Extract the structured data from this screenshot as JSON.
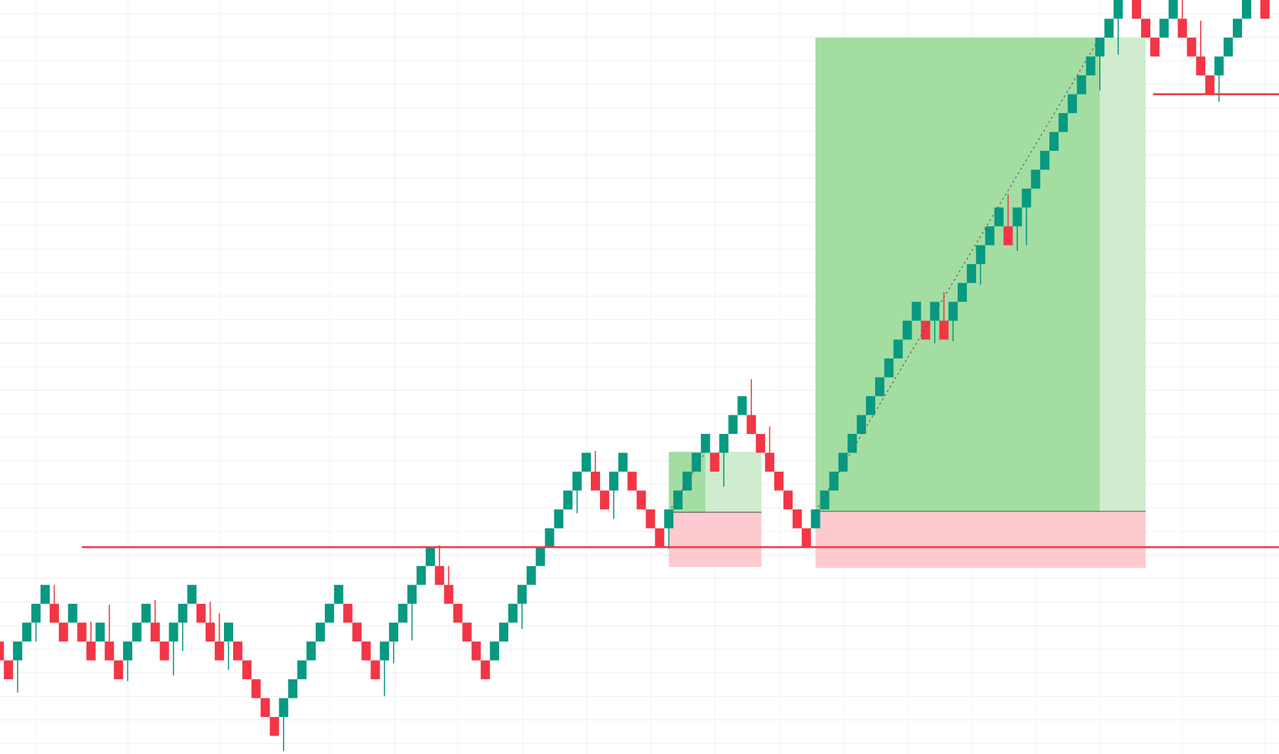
{
  "chart_data": {
    "type": "renko",
    "grid": true,
    "colors": {
      "up": "#089981",
      "down": "#F23645",
      "target_fill": "#A3DDA2",
      "target_fill_light": "#CFECCE",
      "stop_fill": "#FDCBCF",
      "level_line": "#F23645",
      "entry_line": "#5d5d5d",
      "grid": "#f0f0f0"
    },
    "bricks": {
      "bottoms": [
        4,
        3,
        4,
        5,
        6,
        7,
        6,
        5,
        6,
        5,
        4,
        5,
        4,
        3,
        4,
        5,
        6,
        5,
        4,
        5,
        6,
        7,
        6,
        5,
        4,
        5,
        4,
        3,
        2,
        1,
        0,
        1,
        2,
        3,
        4,
        5,
        6,
        7,
        6,
        5,
        4,
        3,
        4,
        5,
        6,
        7,
        8,
        9,
        8,
        7,
        6,
        5,
        4,
        3,
        4,
        5,
        6,
        7,
        8,
        9,
        10,
        11,
        12,
        13,
        14,
        13,
        12,
        13,
        14,
        13,
        12,
        11,
        10,
        11,
        12,
        13,
        14,
        15,
        14,
        15,
        16,
        17,
        16,
        15,
        14,
        13,
        12,
        11,
        10,
        11,
        12,
        13,
        14,
        15,
        16,
        17,
        18,
        19,
        20,
        21,
        22,
        21,
        22,
        21,
        22,
        23,
        24,
        25,
        26,
        27,
        26,
        27,
        28,
        29,
        30,
        31,
        32,
        33,
        34,
        35,
        36,
        37,
        38,
        39,
        38,
        37,
        36,
        37,
        38,
        37,
        36,
        35,
        34,
        35,
        36,
        37,
        38,
        39,
        38
      ],
      "directions": [
        "down",
        "down",
        "up",
        "up",
        "up",
        "up",
        "down",
        "down",
        "up",
        "down",
        "down",
        "up",
        "down",
        "down",
        "up",
        "up",
        "up",
        "down",
        "down",
        "up",
        "up",
        "up",
        "down",
        "down",
        "down",
        "up",
        "down",
        "down",
        "down",
        "down",
        "down",
        "up",
        "up",
        "up",
        "up",
        "up",
        "up",
        "up",
        "down",
        "down",
        "down",
        "down",
        "up",
        "up",
        "up",
        "up",
        "up",
        "up",
        "down",
        "down",
        "down",
        "down",
        "down",
        "down",
        "up",
        "up",
        "up",
        "up",
        "up",
        "up",
        "up",
        "up",
        "up",
        "up",
        "up",
        "down",
        "down",
        "up",
        "up",
        "down",
        "down",
        "down",
        "down",
        "up",
        "up",
        "up",
        "up",
        "up",
        "down",
        "up",
        "up",
        "up",
        "down",
        "down",
        "down",
        "down",
        "down",
        "down",
        "down",
        "up",
        "up",
        "up",
        "up",
        "up",
        "up",
        "up",
        "up",
        "up",
        "up",
        "up",
        "up",
        "down",
        "up",
        "down",
        "up",
        "up",
        "up",
        "up",
        "up",
        "up",
        "down",
        "up",
        "up",
        "up",
        "up",
        "up",
        "up",
        "up",
        "up",
        "up",
        "up",
        "up",
        "up",
        "up",
        "down",
        "down",
        "down",
        "up",
        "up",
        "down",
        "down",
        "down",
        "down",
        "up",
        "up",
        "up",
        "up",
        "up",
        "down"
      ]
    },
    "wicks": [
      {
        "brick": 2,
        "to": 2.3
      },
      {
        "brick": 4,
        "to": 5.0
      },
      {
        "brick": 6,
        "to": 8.0
      },
      {
        "brick": 10,
        "to": 6.05
      },
      {
        "brick": 12,
        "to": 6.95
      },
      {
        "brick": 14,
        "to": 2.9
      },
      {
        "brick": 17,
        "to": 7.2
      },
      {
        "brick": 19,
        "to": 3.2
      },
      {
        "brick": 20,
        "to": 4.5
      },
      {
        "brick": 23,
        "to": 7.1
      },
      {
        "brick": 24,
        "to": 6.5
      },
      {
        "brick": 25,
        "to": 3.5
      },
      {
        "brick": 31,
        "to": -0.8
      },
      {
        "brick": 42,
        "to": 2.1
      },
      {
        "brick": 43,
        "to": 3.85
      },
      {
        "brick": 45,
        "to": 5.05
      },
      {
        "brick": 48,
        "to": 10.1
      },
      {
        "brick": 49,
        "to": 9.0
      },
      {
        "brick": 57,
        "to": 5.67
      },
      {
        "brick": 63,
        "to": 11.8
      },
      {
        "brick": 65,
        "to": 15.1
      },
      {
        "brick": 67,
        "to": 11.5
      },
      {
        "brick": 73,
        "to": 9.9
      },
      {
        "brick": 79,
        "to": 13.2
      },
      {
        "brick": 82,
        "to": 18.9
      },
      {
        "brick": 84,
        "to": 16.4
      },
      {
        "brick": 102,
        "to": 20.8
      },
      {
        "brick": 103,
        "to": 23.5
      },
      {
        "brick": 104,
        "to": 20.9
      },
      {
        "brick": 107,
        "to": 23.9
      },
      {
        "brick": 110,
        "to": 28.7
      },
      {
        "brick": 111,
        "to": 25.7
      },
      {
        "brick": 112,
        "to": 26.0
      },
      {
        "brick": 120,
        "to": 34.2
      },
      {
        "brick": 122,
        "to": 36.1
      },
      {
        "brick": 129,
        "to": 39.5
      },
      {
        "brick": 131,
        "to": 37.9
      },
      {
        "brick": 133,
        "to": 33.6
      }
    ],
    "horizontal_lines": [
      {
        "price": 10,
        "from_brick": 9.5
      },
      {
        "price": 34,
        "from_brick": 126.3
      }
    ],
    "positions": [
      {
        "type": "long",
        "from_brick": 73.5,
        "filled_to_brick": 77.5,
        "to_brick": 83.6,
        "entry": 11.85,
        "target": 15.05,
        "stop": 8.95
      },
      {
        "type": "long",
        "from_brick": 89.5,
        "filled_to_brick": 120.5,
        "to_brick": 125.5,
        "entry": 11.9,
        "target": 37.0,
        "stop": 8.9
      }
    ]
  }
}
